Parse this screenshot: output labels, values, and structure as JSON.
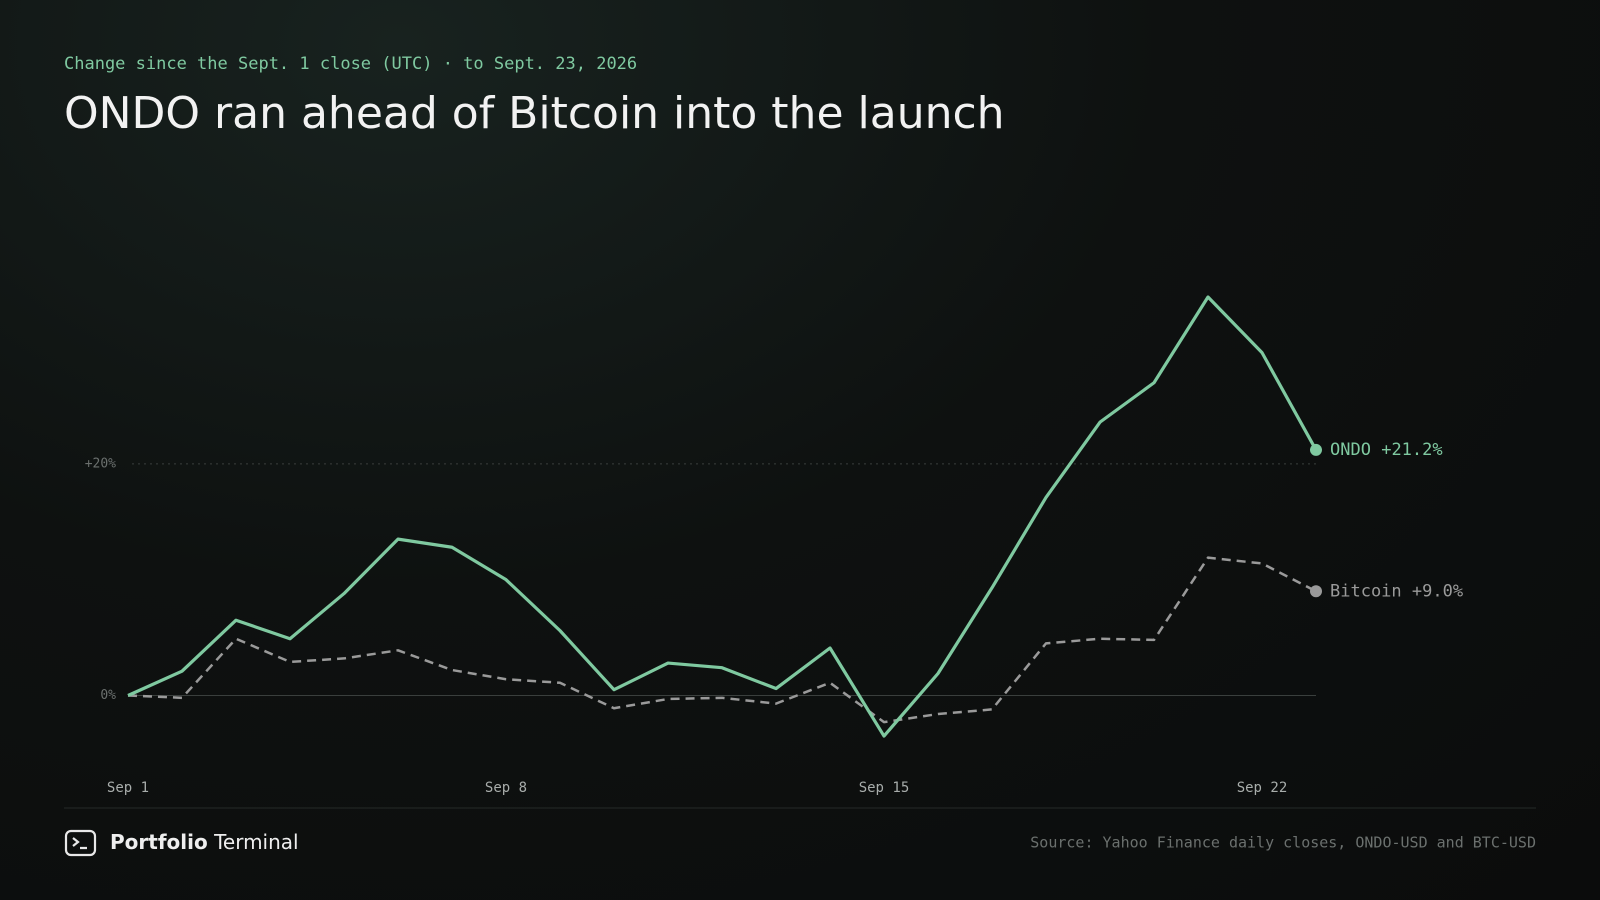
{
  "chart_data": {
    "type": "line",
    "subtitle": "Change since the Sept. 1 close (UTC) · to Sept. 23, 2026",
    "title": "ONDO ran ahead of Bitcoin into the launch",
    "categories": [
      "Sep 1",
      null,
      null,
      null,
      null,
      null,
      null,
      "Sep 8",
      null,
      null,
      null,
      null,
      null,
      null,
      "Sep 15",
      null,
      null,
      null,
      null,
      null,
      null,
      "Sep 22",
      null
    ],
    "series": [
      {
        "name": "ONDO",
        "color": "#7fc9a0",
        "dash": false,
        "values": [
          0,
          2.1,
          6.5,
          4.9,
          8.8,
          13.5,
          12.8,
          10.0,
          5.6,
          0.5,
          2.8,
          2.4,
          0.6,
          4.1,
          -3.5,
          1.9,
          9.3,
          17.1,
          23.6,
          27.0,
          34.4,
          29.6,
          21.2
        ],
        "value_labels": [
          null,
          null,
          null,
          null,
          null,
          null,
          null,
          null,
          null,
          null,
          null,
          null,
          null,
          null,
          null,
          null,
          null,
          null,
          null,
          null,
          null,
          null,
          "+21.2%"
        ]
      },
      {
        "name": "Bitcoin",
        "color": "#9a9a9a",
        "dash": true,
        "values": [
          0,
          -0.2,
          4.9,
          2.9,
          3.2,
          3.9,
          2.2,
          1.4,
          1.1,
          -1.1,
          -0.3,
          -0.2,
          -0.7,
          1.1,
          -2.3,
          -1.6,
          -1.2,
          4.5,
          4.9,
          4.8,
          11.9,
          11.4,
          9.0
        ],
        "value_labels": [
          null,
          null,
          null,
          null,
          null,
          null,
          null,
          null,
          null,
          null,
          null,
          null,
          null,
          null,
          null,
          null,
          null,
          null,
          null,
          null,
          null,
          null,
          "+9.0%"
        ]
      }
    ],
    "ylim": [
      -6,
      42
    ],
    "yticks": [
      {
        "value": 0,
        "label": "0%"
      },
      {
        "value": 20,
        "label": "+20%"
      }
    ],
    "grid": true
  },
  "footer": {
    "brand_bold": "Portfolio",
    "brand": "Terminal",
    "source": "Source: Yahoo Finance daily closes, ONDO-USD and BTC-USD"
  }
}
